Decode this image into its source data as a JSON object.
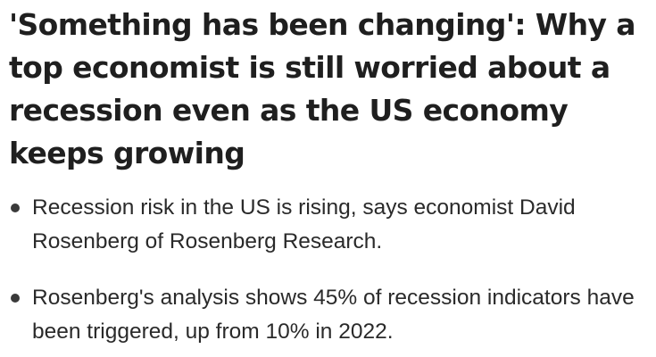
{
  "article": {
    "headline": "'Something has been changing': Why a top economist is still worried about a recession even as the US economy keeps growing",
    "summary": [
      "Recession risk in the US is rising, says economist David Rosenberg of Rosenberg Research.",
      "Rosenberg's analysis shows 45% of recession indicators have been triggered, up from 10% in 2022."
    ]
  },
  "colors": {
    "text": "#222222",
    "background": "#ffffff"
  },
  "icons": {
    "bullet": "bullet-dot"
  }
}
